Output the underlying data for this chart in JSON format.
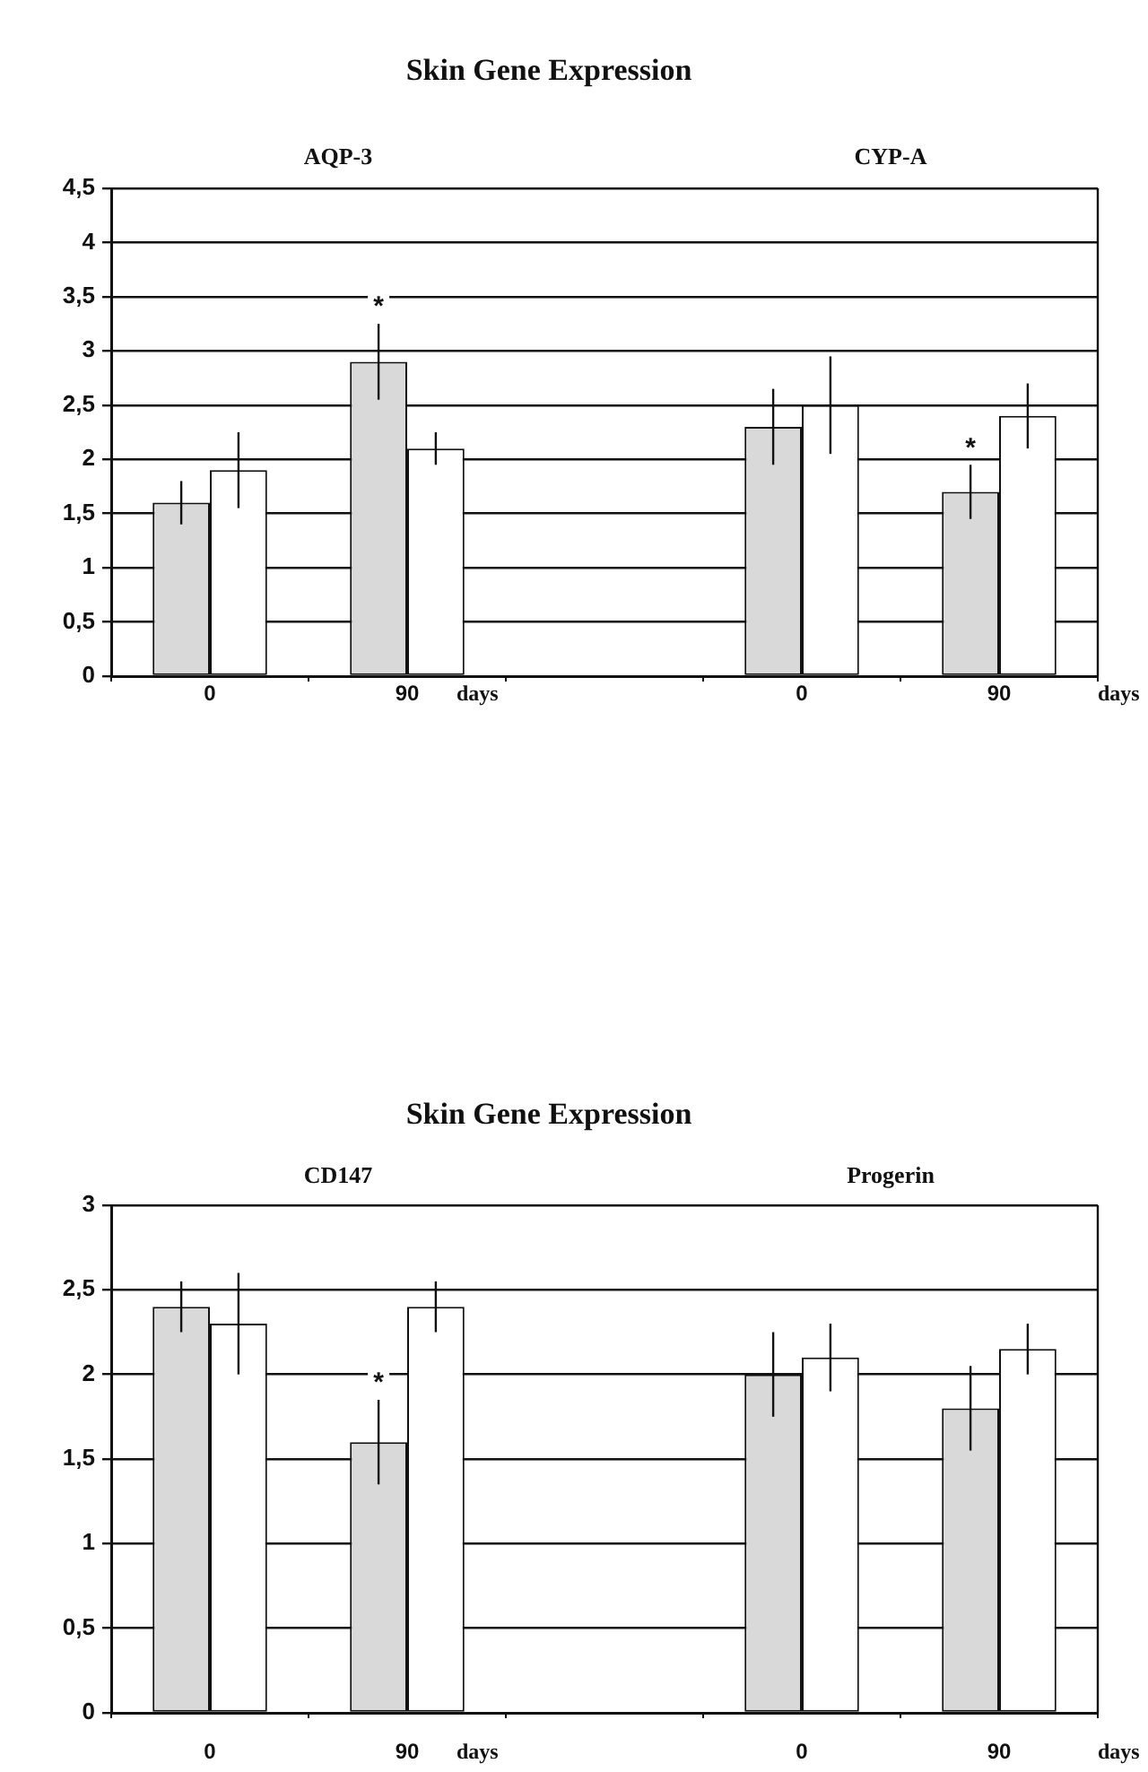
{
  "chart_data": [
    {
      "type": "bar",
      "title": "Skin Gene Expression",
      "categories": [
        "0",
        "90",
        null,
        "0",
        "90"
      ],
      "series": [
        {
          "color": "#d9d9d9",
          "values": [
            1.6,
            2.9,
            null,
            2.3,
            1.7
          ],
          "errors": [
            0.2,
            0.35,
            null,
            0.35,
            0.25
          ],
          "value_labels": [
            null,
            "*",
            null,
            null,
            "*"
          ]
        },
        {
          "color": "#ffffff",
          "values": [
            1.9,
            2.1,
            null,
            2.5,
            2.4
          ],
          "errors": [
            0.35,
            0.15,
            null,
            0.45,
            0.3
          ]
        }
      ],
      "ylim": [
        0,
        4.5
      ],
      "yticks": [
        0,
        {
          "value": 0.5,
          "label": "0,5"
        },
        1,
        {
          "value": 1.5,
          "label": "1,5"
        },
        2,
        {
          "value": 2.5,
          "label": "2,5"
        },
        3,
        {
          "value": 3.5,
          "label": "3,5"
        },
        4,
        {
          "value": 4.5,
          "label": "4,5"
        }
      ],
      "grid": "y",
      "annotations": [
        "AQP-3",
        "CYP-A",
        "days",
        "days"
      ]
    },
    {
      "type": "bar",
      "title": "Skin Gene Expression",
      "categories": [
        "0",
        "90",
        null,
        "0",
        "90"
      ],
      "series": [
        {
          "color": "#d9d9d9",
          "values": [
            2.4,
            1.6,
            null,
            2.0,
            1.8
          ],
          "errors": [
            0.15,
            0.25,
            null,
            0.25,
            0.25
          ],
          "value_labels": [
            null,
            "*",
            null,
            null,
            null
          ]
        },
        {
          "color": "#ffffff",
          "values": [
            2.3,
            2.4,
            null,
            2.1,
            2.15
          ],
          "errors": [
            0.3,
            0.15,
            null,
            0.2,
            0.15
          ]
        }
      ],
      "ylim": [
        0,
        3
      ],
      "yticks": [
        0,
        {
          "value": 0.5,
          "label": "0,5"
        },
        1,
        {
          "value": 1.5,
          "label": "1,5"
        },
        2,
        {
          "value": 2.5,
          "label": "2,5"
        },
        3
      ],
      "grid": "y",
      "annotations": [
        "CD147",
        "Progerin",
        "days",
        "days"
      ]
    }
  ]
}
